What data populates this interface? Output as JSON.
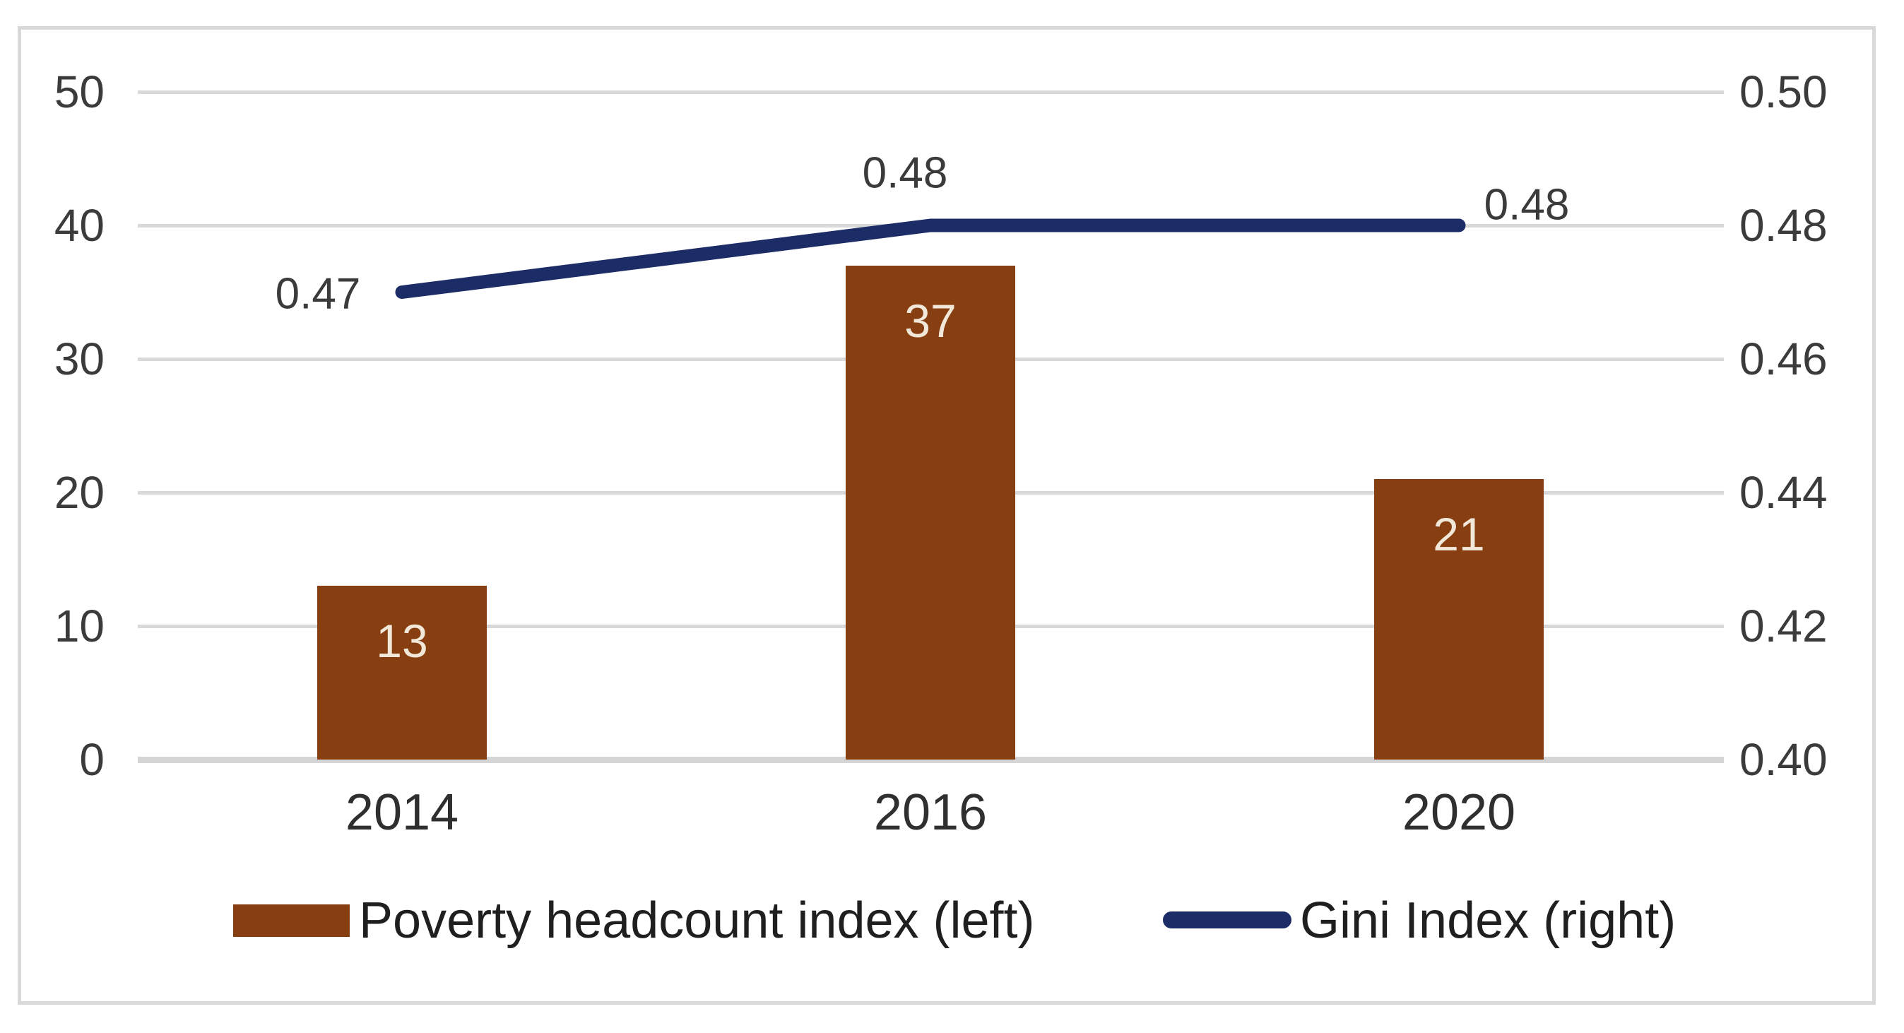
{
  "chart_data": {
    "type": "bar",
    "subtype": "combo-bar-line-dual-axis",
    "title": "",
    "categories": [
      "2014",
      "2016",
      "2020"
    ],
    "series": [
      {
        "name": "Poverty headcount index (left)",
        "type": "bar",
        "axis": "left",
        "values": [
          13,
          37,
          21
        ],
        "data_labels": [
          "13",
          "37",
          "21"
        ],
        "color": "#873E11"
      },
      {
        "name": "Gini Index (right)",
        "type": "line",
        "axis": "right",
        "values": [
          0.47,
          0.48,
          0.48
        ],
        "data_labels": [
          "0.47",
          "0.48",
          "0.48"
        ],
        "color": "#1B2C66"
      }
    ],
    "left_axis": {
      "min": 0,
      "max": 50,
      "tick_labels": [
        "0",
        "10",
        "20",
        "30",
        "40",
        "50"
      ]
    },
    "right_axis": {
      "min": 0.4,
      "max": 0.5,
      "tick_labels": [
        "0.40",
        "0.42",
        "0.44",
        "0.46",
        "0.48",
        "0.50"
      ]
    },
    "grid": true,
    "legend_position": "bottom"
  },
  "legend": {
    "items": [
      {
        "label": "Poverty headcount index (left)",
        "swatch": "bar",
        "color": "#873E11"
      },
      {
        "label": "Gini Index (right)",
        "swatch": "line",
        "color": "#1B2C66"
      }
    ]
  },
  "colors": {
    "bar": "#873E11",
    "line": "#1B2C66",
    "gridline": "#D9D9D9",
    "axis_line": "#D5D5D5",
    "frame_border": "#D9D9D9",
    "tick_text": "#3B3B3B",
    "bar_label_text": "#F2E8D9",
    "background": "#FFFFFF"
  }
}
